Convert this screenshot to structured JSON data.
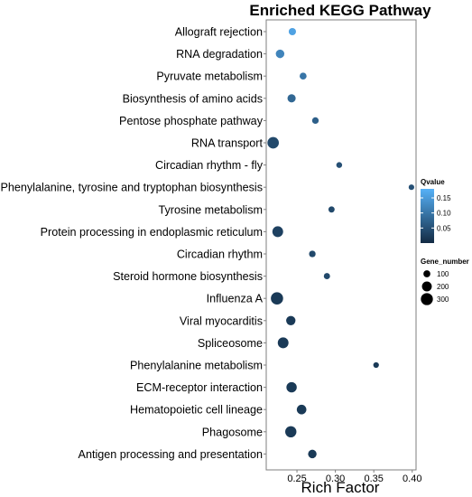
{
  "chart_data": {
    "type": "scatter",
    "title": "Enriched KEGG Pathway",
    "xlabel": "Rich Factor",
    "ylabel": "",
    "xlim": [
      0.21,
      0.405
    ],
    "xticks": [
      "0.25",
      "0.30",
      "0.35",
      "0.40"
    ],
    "xtick_values": [
      0.25,
      0.3,
      0.35,
      0.4
    ],
    "grid": false,
    "legend_position": "right",
    "color_legend": {
      "title": "Qvalue",
      "ticks": [
        "0.15",
        "0.10",
        "0.05"
      ],
      "tick_values": [
        0.15,
        0.1,
        0.05
      ],
      "range": [
        0.0,
        0.18
      ],
      "low_color": "#132B43",
      "high_color": "#56B1F7"
    },
    "size_legend": {
      "title": "Gene_number",
      "labels": [
        "100",
        "200",
        "300"
      ],
      "values": [
        100,
        200,
        300
      ]
    },
    "points": [
      {
        "pathway": "Allograft rejection",
        "rich_factor": 0.244,
        "qvalue": 0.16,
        "gene_number": 110
      },
      {
        "pathway": "RNA degradation",
        "rich_factor": 0.228,
        "qvalue": 0.12,
        "gene_number": 150
      },
      {
        "pathway": "Pyruvate metabolism",
        "rich_factor": 0.258,
        "qvalue": 0.1,
        "gene_number": 100
      },
      {
        "pathway": "Biosynthesis of amino acids",
        "rich_factor": 0.243,
        "qvalue": 0.08,
        "gene_number": 140
      },
      {
        "pathway": "Pentose phosphate pathway",
        "rich_factor": 0.274,
        "qvalue": 0.07,
        "gene_number": 90
      },
      {
        "pathway": "RNA transport",
        "rich_factor": 0.219,
        "qvalue": 0.04,
        "gene_number": 270
      },
      {
        "pathway": "Circadian rhythm - fly",
        "rich_factor": 0.305,
        "qvalue": 0.05,
        "gene_number": 70
      },
      {
        "pathway": "Phenylalanine, tyrosine and tryptophan biosynthesis",
        "rich_factor": 0.399,
        "qvalue": 0.05,
        "gene_number": 65
      },
      {
        "pathway": "Tyrosine metabolism",
        "rich_factor": 0.295,
        "qvalue": 0.04,
        "gene_number": 80
      },
      {
        "pathway": "Protein processing in endoplasmic reticulum",
        "rich_factor": 0.225,
        "qvalue": 0.03,
        "gene_number": 240
      },
      {
        "pathway": "Circadian rhythm",
        "rich_factor": 0.27,
        "qvalue": 0.04,
        "gene_number": 90
      },
      {
        "pathway": "Steroid hormone biosynthesis",
        "rich_factor": 0.289,
        "qvalue": 0.04,
        "gene_number": 80
      },
      {
        "pathway": "Influenza A",
        "rich_factor": 0.224,
        "qvalue": 0.02,
        "gene_number": 310
      },
      {
        "pathway": "Viral myocarditis",
        "rich_factor": 0.242,
        "qvalue": 0.02,
        "gene_number": 180
      },
      {
        "pathway": "Spliceosome",
        "rich_factor": 0.232,
        "qvalue": 0.02,
        "gene_number": 240
      },
      {
        "pathway": "Phenylalanine metabolism",
        "rich_factor": 0.353,
        "qvalue": 0.02,
        "gene_number": 65
      },
      {
        "pathway": "ECM-receptor interaction",
        "rich_factor": 0.243,
        "qvalue": 0.02,
        "gene_number": 220
      },
      {
        "pathway": "Hematopoietic cell lineage",
        "rich_factor": 0.256,
        "qvalue": 0.02,
        "gene_number": 190
      },
      {
        "pathway": "Phagosome",
        "rich_factor": 0.242,
        "qvalue": 0.02,
        "gene_number": 260
      },
      {
        "pathway": "Antigen processing and presentation",
        "rich_factor": 0.27,
        "qvalue": 0.02,
        "gene_number": 150
      }
    ]
  }
}
